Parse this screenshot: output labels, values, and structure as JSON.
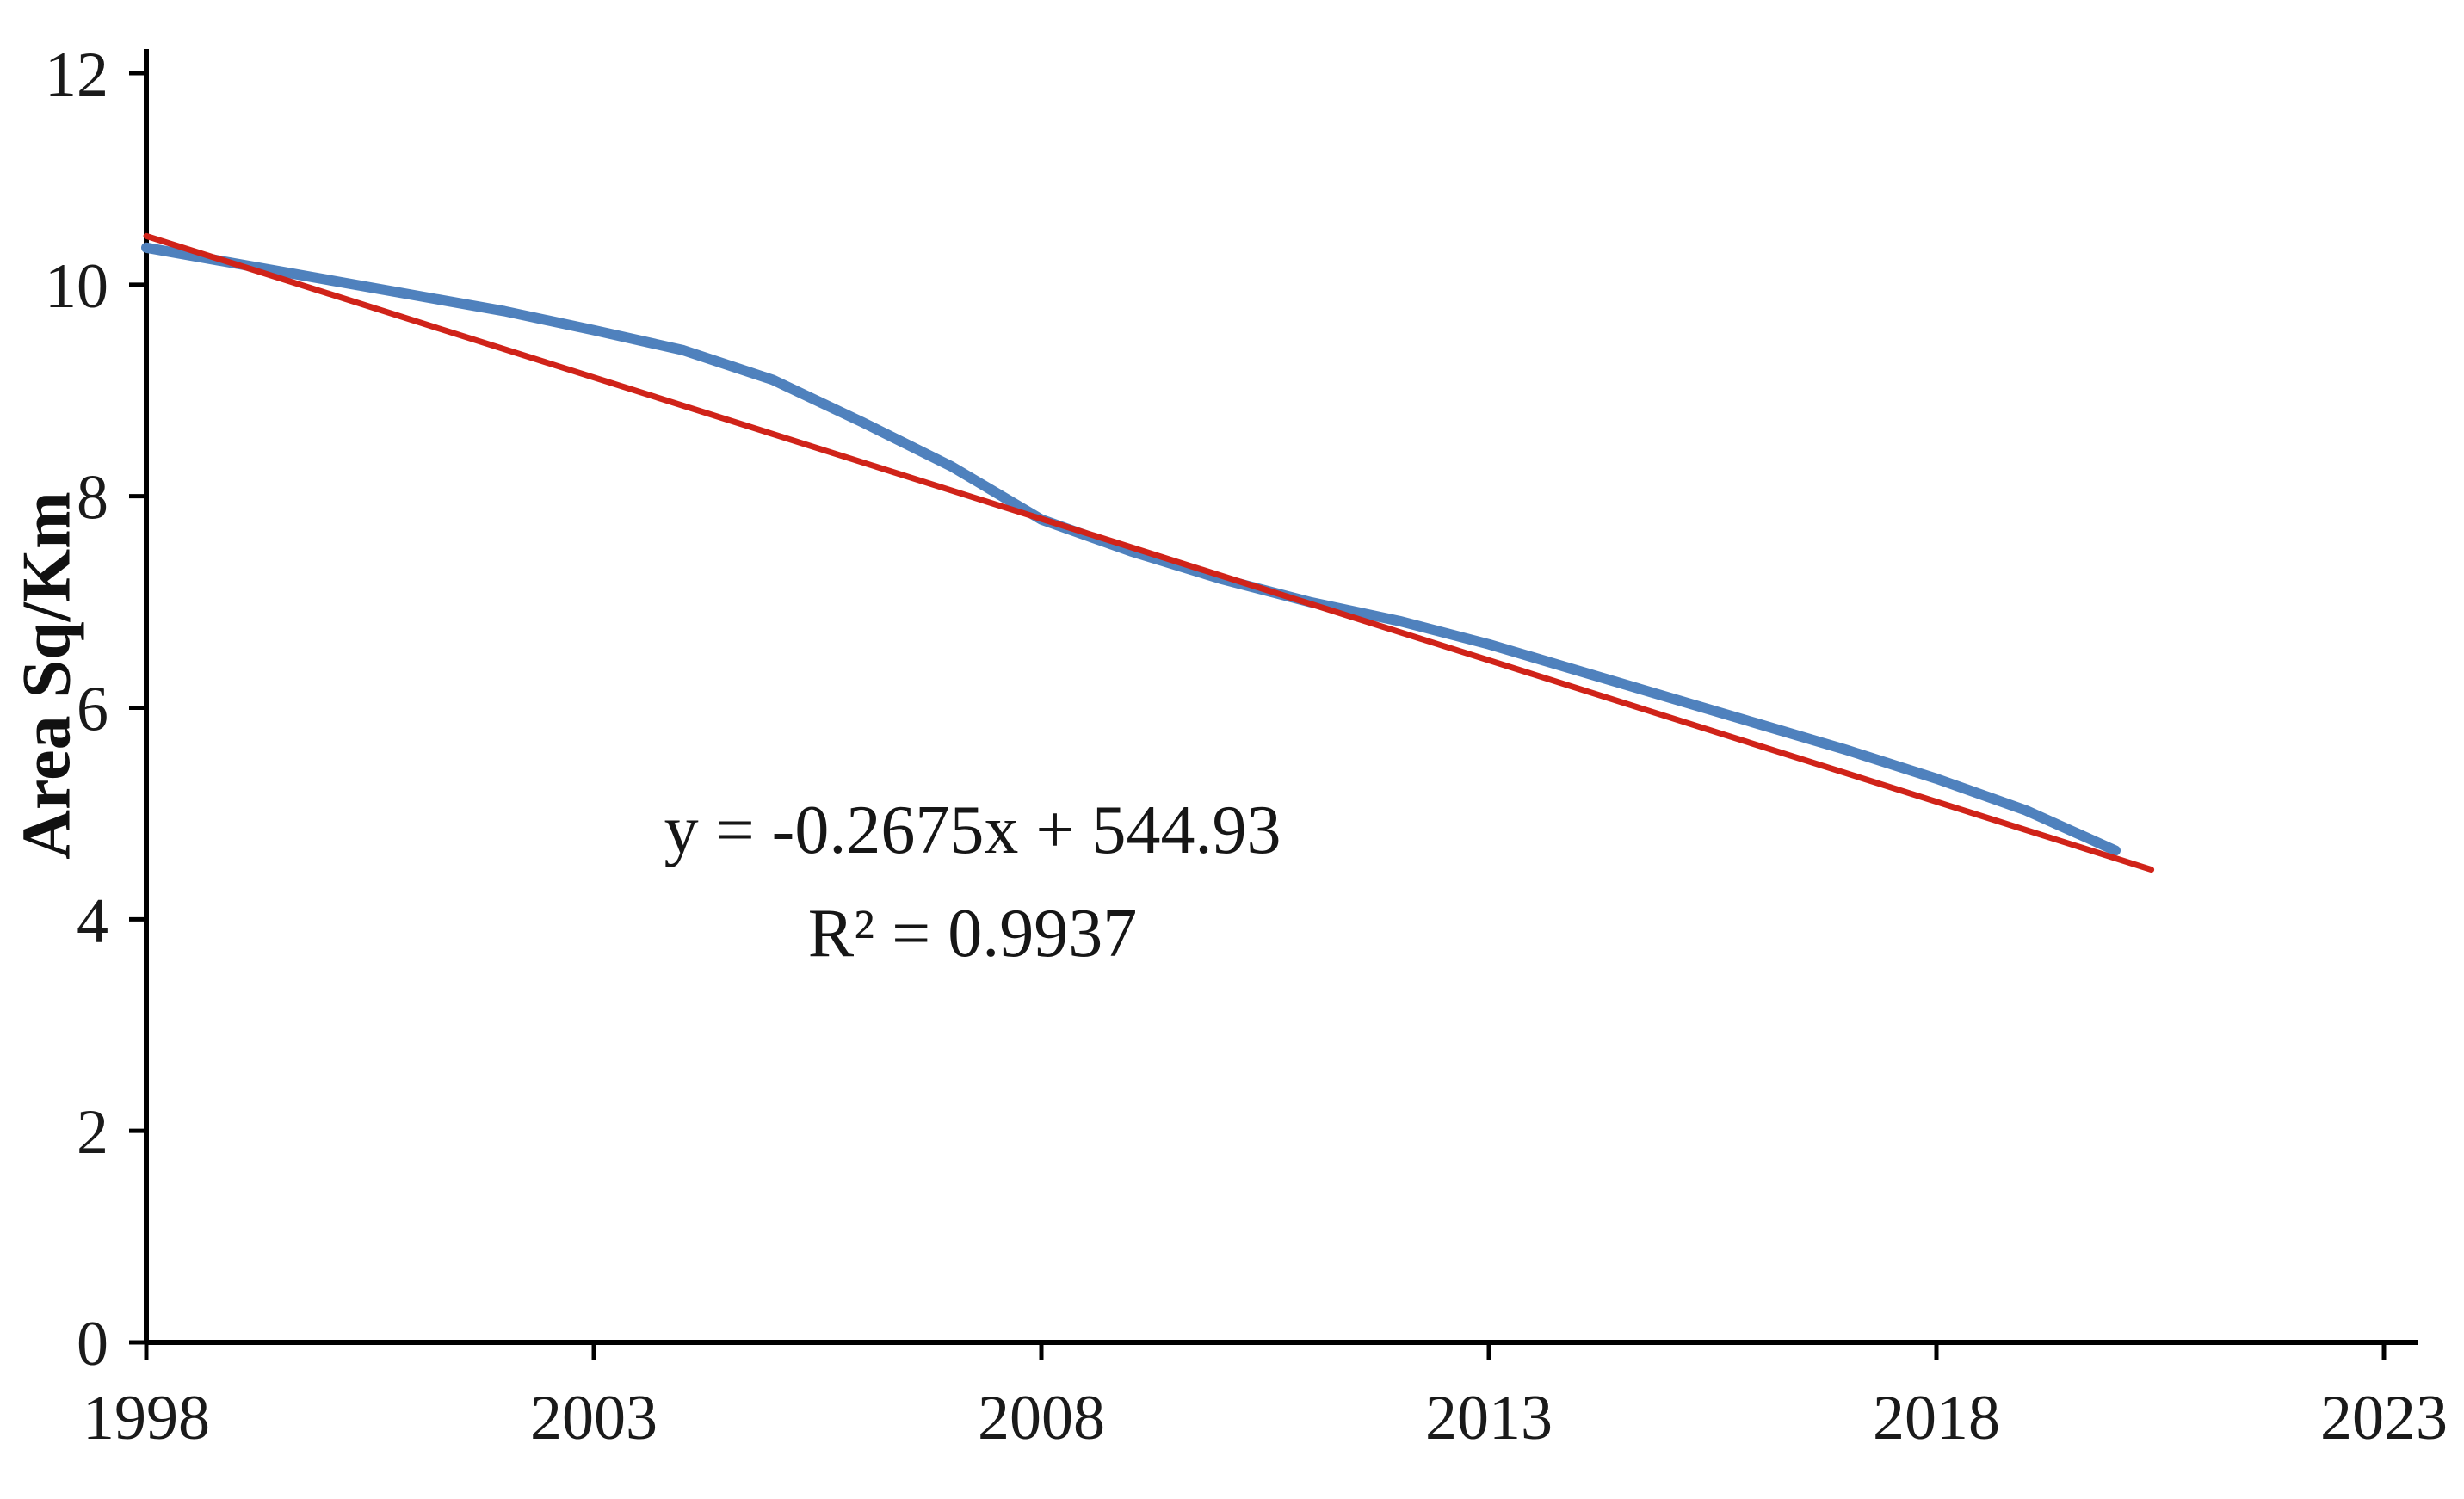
{
  "figure": {
    "background": "#ffffff",
    "axis_color": "#000000",
    "text_color": "#1a1a1a"
  },
  "chart_data": {
    "type": "line",
    "title": "",
    "xlabel": "",
    "ylabel": "Area Sq/Km",
    "xlim": [
      1998,
      2023
    ],
    "ylim": [
      0,
      12
    ],
    "x_ticks": [
      1998,
      2003,
      2008,
      2013,
      2018,
      2023
    ],
    "y_ticks": [
      0,
      2,
      4,
      6,
      8,
      10,
      12
    ],
    "grid": false,
    "legend_position": "none",
    "series": [
      {
        "name": "area-sq-km",
        "color": "#4f81bd",
        "stroke_width": 12,
        "x": [
          1998,
          1999,
          2000,
          2001,
          2002,
          2003,
          2004,
          2005,
          2006,
          2007,
          2008,
          2009,
          2010,
          2011,
          2012,
          2013,
          2014,
          2015,
          2016,
          2017,
          2018,
          2019,
          2020
        ],
        "y": [
          10.35,
          10.2,
          10.05,
          9.9,
          9.75,
          9.57,
          9.38,
          9.1,
          8.7,
          8.28,
          7.78,
          7.48,
          7.22,
          7.0,
          6.82,
          6.6,
          6.35,
          6.1,
          5.85,
          5.6,
          5.33,
          5.03,
          4.65
        ]
      },
      {
        "name": "linear-trendline",
        "color": "#d02319",
        "stroke_width": 7,
        "x": [
          1998,
          2020.4
        ],
        "y": [
          10.46,
          4.47
        ]
      }
    ],
    "trendline": {
      "slope": -0.2675,
      "intercept": 544.93,
      "r_squared": 0.9937
    },
    "annotations": [
      {
        "id": "equation",
        "text": "y = -0.2675x + 544.93"
      },
      {
        "id": "r-squared",
        "text": "R² = 0.9937"
      }
    ]
  }
}
